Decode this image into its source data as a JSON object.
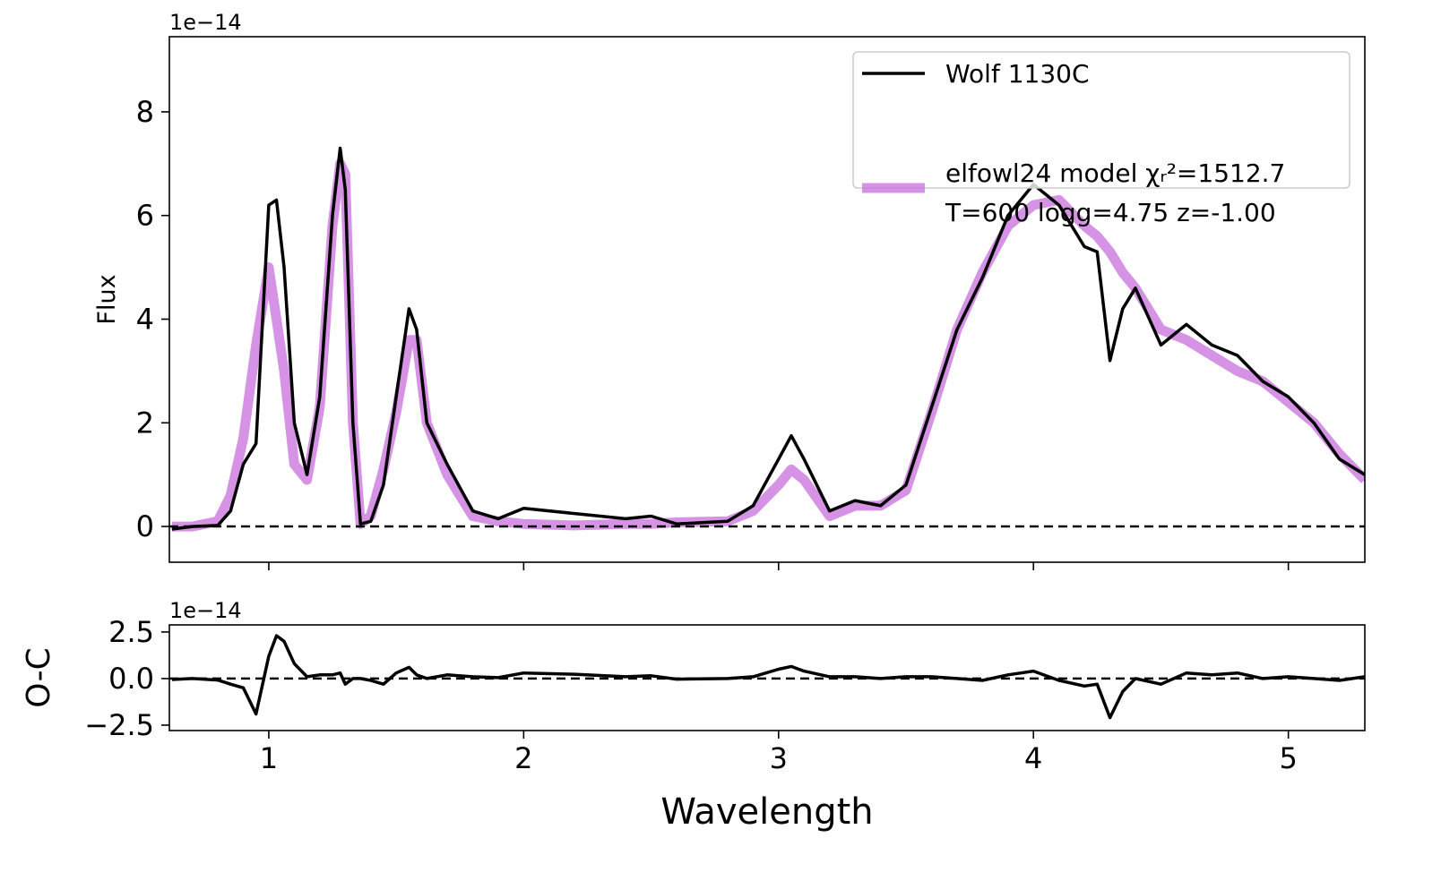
{
  "chart_data": [
    {
      "type": "line",
      "y_label": "Flux",
      "offset_label": "1e−14",
      "x": [
        0.62,
        0.7,
        0.8,
        0.85,
        0.9,
        0.95,
        1.0,
        1.03,
        1.06,
        1.1,
        1.15,
        1.2,
        1.25,
        1.28,
        1.3,
        1.33,
        1.36,
        1.4,
        1.45,
        1.5,
        1.55,
        1.58,
        1.62,
        1.7,
        1.8,
        1.9,
        2.0,
        2.2,
        2.4,
        2.5,
        2.6,
        2.8,
        2.9,
        3.0,
        3.05,
        3.1,
        3.2,
        3.3,
        3.4,
        3.5,
        3.6,
        3.7,
        3.8,
        3.9,
        4.0,
        4.1,
        4.2,
        4.25,
        4.3,
        4.35,
        4.4,
        4.5,
        4.6,
        4.7,
        4.8,
        4.9,
        5.0,
        5.1,
        5.2,
        5.3
      ],
      "series": [
        {
          "name": "elfowl24 model χᵣ²=1512.7",
          "name_detail": "T=600 logg=4.75 z=-1.00",
          "color": "#cc77dd",
          "values": [
            0.0,
            0.0,
            0.1,
            0.6,
            1.7,
            3.5,
            5.0,
            4.0,
            3.0,
            1.2,
            0.9,
            2.3,
            5.8,
            7.0,
            6.8,
            2.0,
            0.05,
            0.2,
            1.1,
            2.2,
            3.6,
            3.6,
            2.0,
            1.0,
            0.2,
            0.1,
            0.05,
            0.02,
            0.05,
            0.05,
            0.08,
            0.1,
            0.3,
            0.8,
            1.1,
            0.9,
            0.2,
            0.4,
            0.4,
            0.7,
            2.2,
            3.8,
            4.9,
            5.8,
            6.2,
            6.3,
            5.8,
            5.6,
            5.3,
            4.9,
            4.6,
            3.8,
            3.6,
            3.3,
            3.0,
            2.8,
            2.4,
            2.0,
            1.4,
            0.9
          ]
        },
        {
          "name": "Wolf 1130C",
          "color": "#000000",
          "values": [
            -0.05,
            0.0,
            0.02,
            0.3,
            1.2,
            1.6,
            6.2,
            6.3,
            5.0,
            2.0,
            1.0,
            2.5,
            6.0,
            7.3,
            6.5,
            2.0,
            0.05,
            0.1,
            0.8,
            2.5,
            4.2,
            3.8,
            2.0,
            1.2,
            0.3,
            0.15,
            0.35,
            0.25,
            0.15,
            0.2,
            0.05,
            0.1,
            0.4,
            1.3,
            1.75,
            1.3,
            0.3,
            0.5,
            0.4,
            0.8,
            2.3,
            3.8,
            4.8,
            6.0,
            6.6,
            6.2,
            5.4,
            5.3,
            3.2,
            4.2,
            4.6,
            3.5,
            3.9,
            3.5,
            3.3,
            2.8,
            2.5,
            2.0,
            1.3,
            1.0
          ]
        }
      ],
      "hline": 0,
      "xlim": [
        0.61,
        5.3
      ],
      "ylim": [
        -0.69,
        9.45
      ],
      "xticks": [
        1,
        2,
        3,
        4,
        5
      ],
      "yticks": [
        0,
        2,
        4,
        6,
        8
      ],
      "show_xtick_labels": false,
      "legend": "upper right"
    },
    {
      "type": "line",
      "y_label": "O-C",
      "x_label": "Wavelength",
      "offset_label": "1e−14",
      "x": [
        0.62,
        0.7,
        0.8,
        0.85,
        0.9,
        0.95,
        1.0,
        1.03,
        1.06,
        1.1,
        1.15,
        1.2,
        1.25,
        1.28,
        1.3,
        1.33,
        1.36,
        1.4,
        1.45,
        1.5,
        1.55,
        1.58,
        1.62,
        1.7,
        1.8,
        1.9,
        2.0,
        2.2,
        2.4,
        2.5,
        2.6,
        2.8,
        2.9,
        3.0,
        3.05,
        3.1,
        3.2,
        3.3,
        3.4,
        3.5,
        3.6,
        3.7,
        3.8,
        3.9,
        4.0,
        4.1,
        4.2,
        4.25,
        4.3,
        4.35,
        4.4,
        4.5,
        4.6,
        4.7,
        4.8,
        4.9,
        5.0,
        5.1,
        5.2,
        5.3
      ],
      "series": [
        {
          "color": "#000000",
          "values": [
            -0.05,
            0,
            -0.08,
            -0.3,
            -0.5,
            -1.9,
            1.2,
            2.3,
            2.0,
            0.8,
            0.1,
            0.2,
            0.2,
            0.3,
            -0.3,
            0,
            0,
            -0.1,
            -0.3,
            0.3,
            0.6,
            0.2,
            0,
            0.2,
            0.1,
            0.05,
            0.3,
            0.23,
            0.1,
            0.15,
            -0.03,
            0,
            0.1,
            0.5,
            0.65,
            0.4,
            0.1,
            0.1,
            0,
            0.1,
            0.1,
            0,
            -0.1,
            0.2,
            0.4,
            -0.1,
            -0.4,
            -0.3,
            -2.1,
            -0.7,
            0,
            -0.3,
            0.3,
            0.2,
            0.3,
            0,
            0.1,
            0,
            -0.1,
            0.1
          ]
        }
      ],
      "hline": 0,
      "xlim": [
        0.61,
        5.3
      ],
      "ylim": [
        -2.79,
        2.88
      ],
      "xticks": [
        1,
        2,
        3,
        4,
        5
      ],
      "yticks": [
        {
          "value": -2.5,
          "label": "−2.5"
        },
        {
          "value": 0,
          "label": "0.0"
        },
        {
          "value": 2.5,
          "label": "2.5"
        }
      ],
      "show_xtick_labels": true
    }
  ]
}
